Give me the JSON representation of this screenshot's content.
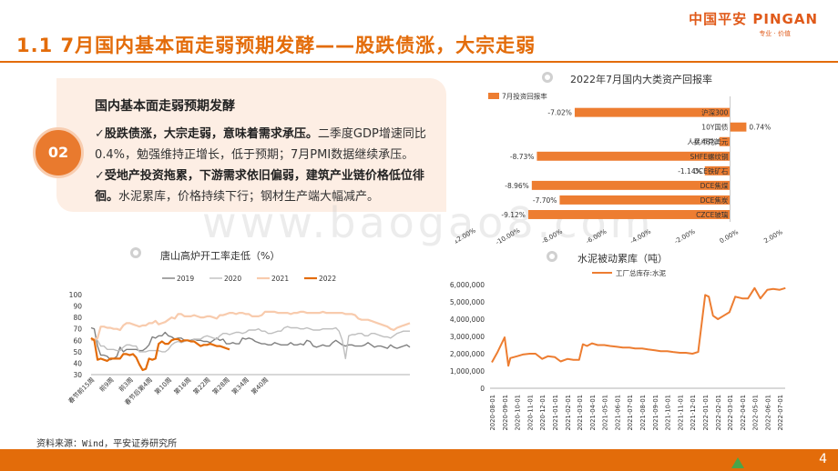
{
  "header": {
    "title": "1.1 7月国内基本面走弱预期发酵——股跌债涨，大宗走弱",
    "logo_main": "中国平安 PINGAN",
    "logo_sub": "专业 · 价值"
  },
  "card": {
    "badge": "02",
    "heading": "国内基本面走弱预期发酵",
    "bullet1_bold": "股跌债涨，大宗走弱，意味着需求承压。",
    "bullet1_rest": "二季度GDP增速同比0.4%，勉强维持正增长，低于预期；7月PMI数据继续承压。",
    "bullet2_bold": "受地产投资拖累，下游需求依旧偏弱，建筑产业链价格低位徘徊。",
    "bullet2_rest": "水泥累库，价格持续下行；钢材生产端大幅减产。"
  },
  "watermark": "www.baogao8.com",
  "source": "资料来源：Wind，平安证券研究所",
  "page_number": "4",
  "colors": {
    "accent": "#e36c0a",
    "bar": "#ed7d31",
    "y2019": "#808080",
    "y2020": "#bfbfbf",
    "y2021": "#f8cbad",
    "y2022": "#e36c0a"
  },
  "chart_data": [
    {
      "type": "bar",
      "orientation": "horizontal",
      "title": "2022年7月国内大类资产回报率",
      "legend": [
        "7月投资回报率"
      ],
      "categories": [
        "沪深300",
        "10Y国债",
        "人民币兑美元",
        "SHFE螺纹钢",
        "DCE铁矿石",
        "DCE焦煤",
        "DCE焦炭",
        "CZCE玻璃"
      ],
      "values": [
        -7.02,
        0.74,
        -0.48,
        -8.73,
        -1.14,
        -8.96,
        -7.7,
        -9.12
      ],
      "value_labels": [
        "-7.02%",
        "0.74%",
        "-0.48%",
        "-8.73%",
        "-1.14%",
        "-8.96%",
        "-7.70%",
        "-9.12%"
      ],
      "xlim": [
        -12,
        2
      ],
      "xticks": [
        "-12.00%",
        "-10.00%",
        "-8.00%",
        "-6.00%",
        "-4.00%",
        "-2.00%",
        "0.00%",
        "2.00%"
      ]
    },
    {
      "type": "line",
      "title": "唐山高炉开工率走低（%）",
      "ylim": [
        30,
        100
      ],
      "yticks": [
        "30",
        "40",
        "50",
        "60",
        "70",
        "80",
        "90",
        "100"
      ],
      "xticks": [
        "春节前15周",
        "前9周",
        "前3周",
        "春节后第4周",
        "第10周",
        "第16周",
        "第22周",
        "第28周",
        "第34周",
        "第40周"
      ],
      "series": [
        {
          "name": "2019",
          "values": [
            71,
            70,
            55,
            47,
            47,
            46,
            43,
            44,
            46,
            54,
            50,
            52,
            52,
            52,
            52,
            51,
            51,
            53,
            56,
            63,
            62,
            64,
            64,
            67,
            64,
            63,
            61,
            62,
            62,
            60,
            60,
            60,
            61,
            60,
            60,
            59,
            59,
            58,
            60,
            62,
            60,
            61,
            57,
            57,
            58,
            57,
            57,
            62,
            61,
            62,
            61,
            59,
            58,
            57,
            57,
            56,
            56,
            58,
            57,
            56,
            56,
            56,
            58,
            56,
            56,
            57,
            56,
            60,
            59,
            55,
            54,
            55,
            56,
            55,
            55,
            58,
            60,
            58,
            56,
            55,
            56,
            56,
            55,
            55,
            55,
            56,
            58,
            56,
            54,
            55,
            55,
            54,
            53,
            56,
            54,
            53,
            54,
            55,
            56,
            54
          ]
        },
        {
          "name": "2020",
          "values": [
            61,
            61,
            60,
            55,
            55,
            52,
            52,
            52,
            51,
            51,
            54,
            56,
            56,
            55,
            55,
            50,
            50,
            50,
            51,
            51,
            51,
            51,
            50,
            50,
            52,
            56,
            58,
            59,
            58,
            59,
            60,
            59,
            61,
            61,
            61,
            63,
            64,
            63,
            62,
            61,
            64,
            66,
            66,
            65,
            66,
            67,
            67,
            66,
            67,
            69,
            69,
            69,
            70,
            68,
            68,
            66,
            66,
            67,
            68,
            68,
            71,
            72,
            71,
            71,
            71,
            70,
            70,
            71,
            70,
            69,
            69,
            69,
            70,
            70,
            70,
            70,
            71,
            68,
            60,
            44,
            64,
            65,
            65,
            66,
            66,
            64,
            64,
            66,
            66,
            65,
            64,
            63,
            63,
            62,
            64,
            66,
            67,
            68,
            68,
            68
          ]
        },
        {
          "name": "2021",
          "values": [
            60,
            61,
            62,
            72,
            72,
            71,
            71,
            70,
            70,
            69,
            73,
            75,
            75,
            74,
            73,
            72,
            73,
            73,
            75,
            75,
            77,
            74,
            75,
            76,
            78,
            80,
            79,
            83,
            83,
            81,
            81,
            81,
            82,
            81,
            80,
            80,
            81,
            81,
            80,
            79,
            82,
            82,
            83,
            84,
            84,
            83,
            84,
            84,
            83,
            83,
            81,
            81,
            81,
            82,
            85,
            85,
            85,
            85,
            84,
            84,
            84,
            84,
            83,
            84,
            84,
            85,
            85,
            84,
            84,
            84,
            84,
            84,
            85,
            84,
            84,
            84,
            84,
            84,
            84,
            83,
            83,
            83,
            82,
            79,
            78,
            78,
            78,
            77,
            76,
            75,
            74,
            73,
            72,
            70,
            69,
            71,
            72,
            73,
            74,
            75
          ]
        },
        {
          "name": "2022",
          "values": [
            62,
            60,
            43,
            44,
            43,
            42,
            44,
            44,
            44,
            44,
            48,
            48,
            47,
            48,
            45,
            39,
            34,
            35,
            44,
            43,
            44,
            57,
            59,
            57,
            57,
            60,
            61,
            61,
            59,
            60,
            60,
            59,
            59,
            57,
            55,
            56,
            56,
            57,
            56,
            55,
            55,
            54,
            53,
            52
          ]
        }
      ]
    },
    {
      "type": "line",
      "title": "水泥被动累库（吨）",
      "legend": [
        "工厂总库存:水泥"
      ],
      "ylim": [
        0,
        6000000
      ],
      "yticks": [
        "0",
        "1,000,000",
        "2,000,000",
        "3,000,000",
        "4,000,000",
        "5,000,000",
        "6,000,000"
      ],
      "xticks": [
        "2020-08-01",
        "2020-09-01",
        "2020-10-01",
        "2020-11-01",
        "2020-12-01",
        "2021-01-01",
        "2021-02-01",
        "2021-03-01",
        "2021-04-01",
        "2021-05-01",
        "2021-06-01",
        "2021-07-01",
        "2021-08-01",
        "2021-09-01",
        "2021-10-01",
        "2021-11-01",
        "2021-12-01",
        "2022-01-01",
        "2022-02-01",
        "2022-03-01",
        "2022-04-01",
        "2022-05-01",
        "2022-06-01",
        "2022-07-01"
      ],
      "series": [
        {
          "name": "工厂总库存:水泥",
          "x": [
            "2020-08-01",
            "2020-08-15",
            "2020-09-01",
            "2020-09-10",
            "2020-09-15",
            "2020-10-01",
            "2020-10-15",
            "2020-11-01",
            "2020-11-15",
            "2020-12-01",
            "2020-12-15",
            "2021-01-01",
            "2021-01-15",
            "2021-02-01",
            "2021-02-15",
            "2021-03-01",
            "2021-03-10",
            "2021-03-20",
            "2021-04-01",
            "2021-04-15",
            "2021-05-01",
            "2021-05-15",
            "2021-06-01",
            "2021-06-15",
            "2021-07-01",
            "2021-07-15",
            "2021-08-01",
            "2021-08-15",
            "2021-09-01",
            "2021-09-15",
            "2021-10-01",
            "2021-10-15",
            "2021-11-01",
            "2021-11-15",
            "2021-12-01",
            "2021-12-15",
            "2022-01-01",
            "2022-01-10",
            "2022-01-20",
            "2022-02-01",
            "2022-02-15",
            "2022-03-01",
            "2022-03-15",
            "2022-04-01",
            "2022-04-15",
            "2022-05-01",
            "2022-05-15",
            "2022-06-01",
            "2022-06-15",
            "2022-07-01",
            "2022-07-15"
          ],
          "values": [
            1500000,
            2100000,
            2950000,
            1300000,
            1750000,
            1850000,
            1950000,
            2000000,
            2000000,
            1700000,
            1850000,
            1800000,
            1550000,
            1700000,
            1650000,
            1650000,
            2550000,
            2450000,
            2600000,
            2500000,
            2500000,
            2450000,
            2400000,
            2350000,
            2350000,
            2300000,
            2300000,
            2250000,
            2200000,
            2150000,
            2150000,
            2100000,
            2050000,
            2050000,
            2000000,
            2100000,
            5400000,
            5300000,
            4200000,
            4000000,
            4200000,
            4400000,
            5300000,
            5200000,
            5200000,
            5800000,
            5200000,
            5700000,
            5750000,
            5700000,
            5800000
          ]
        }
      ]
    }
  ]
}
